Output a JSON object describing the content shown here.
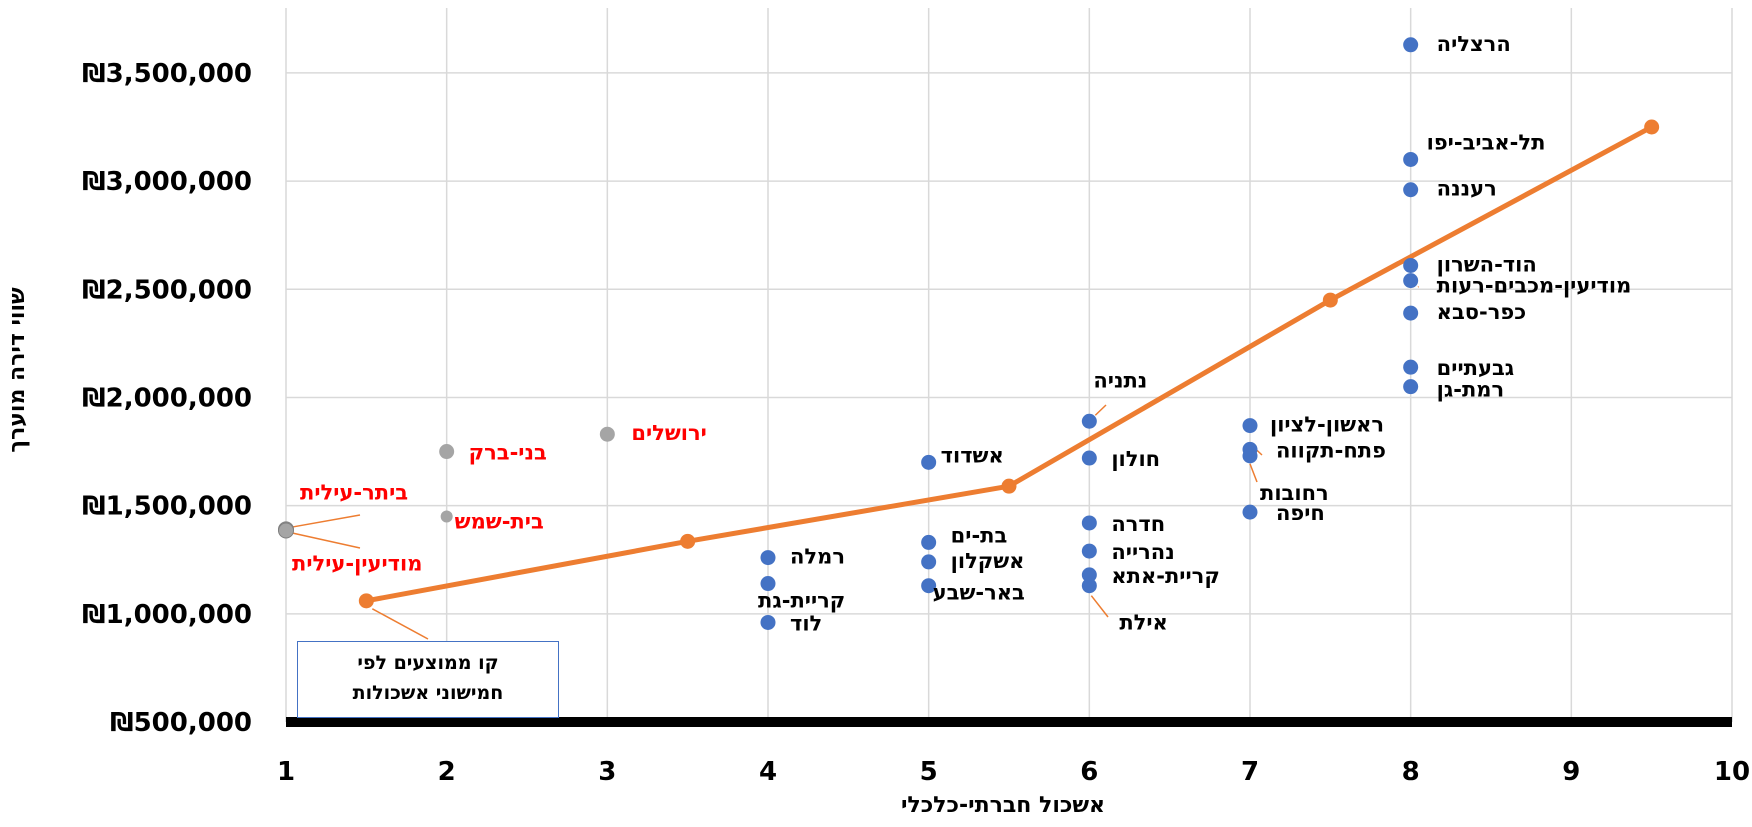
{
  "chart_data": {
    "type": "scatter",
    "xlabel": "אשכול חברתי-כלכלי",
    "ylabel": "שווי דירה מוערך",
    "xlim": [
      1,
      10
    ],
    "ylim": [
      500000,
      3800000
    ],
    "x_ticks": [
      "1",
      "2",
      "3",
      "4",
      "5",
      "6",
      "7",
      "8",
      "9",
      "10"
    ],
    "y_ticks": [
      "₪3,500,000",
      "₪3,000,000",
      "₪2,500,000",
      "₪2,000,000",
      "₪1,500,000",
      "₪1,000,000",
      "₪500,000"
    ],
    "grid": true,
    "colors": {
      "blue": "#4472c4",
      "gray": "#a5a5a5",
      "orange": "#ed7d31",
      "red": "#ff0000",
      "black": "#000000"
    },
    "series": [
      {
        "color": "blue",
        "points": [
          {
            "x": 8,
            "y": 3630000,
            "label": "הרצליה"
          },
          {
            "x": 8,
            "y": 3100000,
            "label": "תל-אביב-יפו"
          },
          {
            "x": 8,
            "y": 2960000,
            "label": "רעננה"
          },
          {
            "x": 8,
            "y": 2610000,
            "label": "הוד-השרון"
          },
          {
            "x": 8,
            "y": 2540000,
            "label": "מודיעין-מכבים-רעות"
          },
          {
            "x": 8,
            "y": 2390000,
            "label": "כפר-סבא"
          },
          {
            "x": 8,
            "y": 2140000,
            "label": "גבעתיים"
          },
          {
            "x": 8,
            "y": 2050000,
            "label": "רמת-גן"
          },
          {
            "x": 7,
            "y": 1870000,
            "label": "ראשון-לציון"
          },
          {
            "x": 7,
            "y": 1760000,
            "label": "פתח-תקווה"
          },
          {
            "x": 7,
            "y": 1730000,
            "label": "רחובות"
          },
          {
            "x": 7,
            "y": 1470000,
            "label": "חיפה"
          },
          {
            "x": 6,
            "y": 1890000,
            "label": "נתניה"
          },
          {
            "x": 6,
            "y": 1720000,
            "label": "חולון"
          },
          {
            "x": 6,
            "y": 1420000,
            "label": "חדרה"
          },
          {
            "x": 6,
            "y": 1290000,
            "label": "נהרייה"
          },
          {
            "x": 6,
            "y": 1180000,
            "label": "קריית-אתא"
          },
          {
            "x": 6,
            "y": 1130000,
            "label": "אילת"
          },
          {
            "x": 5,
            "y": 1700000,
            "label": "אשדוד"
          },
          {
            "x": 5,
            "y": 1330000,
            "label": "בת-ים"
          },
          {
            "x": 5,
            "y": 1240000,
            "label": "אשקלון"
          },
          {
            "x": 5,
            "y": 1130000,
            "label": "באר-שבע"
          },
          {
            "x": 4,
            "y": 1260000,
            "label": "רמלה"
          },
          {
            "x": 4,
            "y": 1140000,
            "label": "קריית-גת"
          },
          {
            "x": 4,
            "y": 960000,
            "label": "לוד"
          }
        ]
      },
      {
        "color": "gray",
        "points": [
          {
            "x": 3,
            "y": 1830000,
            "label": "ירושלים"
          },
          {
            "x": 2,
            "y": 1750000,
            "label": "בני-ברק"
          },
          {
            "x": 2,
            "y": 1450000,
            "label": "בית-שמש"
          },
          {
            "x": 1,
            "y": 1390000,
            "label": "ביתר-עילית"
          },
          {
            "x": 1,
            "y": 1385000,
            "label": "מודיעין-עילית"
          }
        ]
      },
      {
        "color": "orange",
        "type": "line",
        "points": [
          {
            "x": 1.5,
            "y": 1060000
          },
          {
            "x": 3.5,
            "y": 1335000
          },
          {
            "x": 5.5,
            "y": 1590000
          },
          {
            "x": 7.5,
            "y": 2450000
          },
          {
            "x": 9.5,
            "y": 3250000
          }
        ]
      }
    ],
    "annotations": [
      {
        "text_lines": [
          "קו ממוצעים לפי",
          "חמישוני אשכולות"
        ]
      }
    ]
  }
}
